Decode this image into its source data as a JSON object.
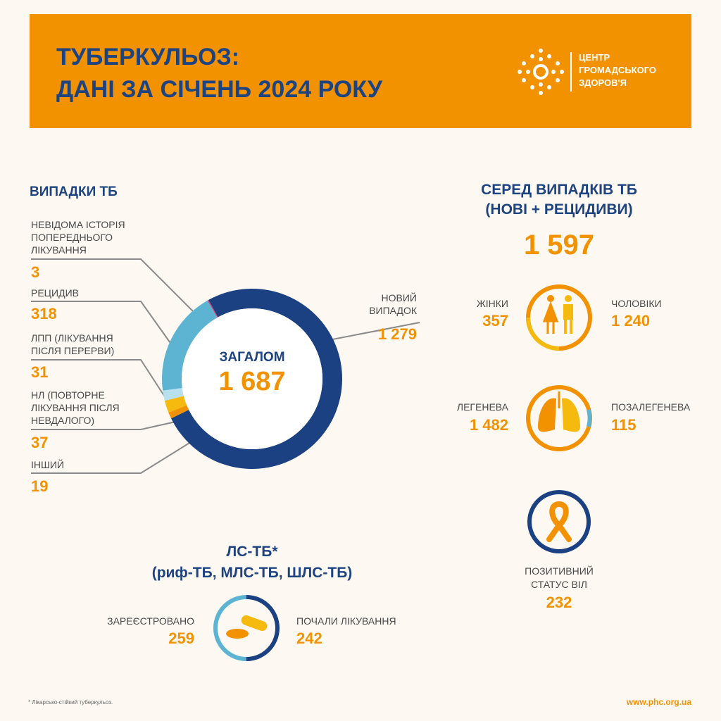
{
  "header": {
    "title_lines": [
      "ТУБЕРКУЛЬОЗ:",
      "ДАНІ ЗА СІЧЕНЬ 2024 РОКУ"
    ],
    "logo_lines": [
      "ЦЕНТР",
      "ГРОМАДСЬКОГО",
      "ЗДОРОВ'Я"
    ]
  },
  "chart_data": {
    "type": "pie",
    "title": "ВИПАДКИ ТБ",
    "center_label": "ЗАГАЛОМ",
    "center_total": "1 687",
    "categories": [
      "НОВИЙ ВИПАДОК",
      "ІНШИЙ",
      "НЛ (ПОВТОРНЕ ЛІКУВАННЯ ПІСЛЯ НЕВДАЛОГО)",
      "ЛПП (ЛІКУВАННЯ ПІСЛЯ ПЕРЕРВИ)",
      "РЕЦИДИВ",
      "НЕВІДОМА ІСТОРІЯ ПОПЕРЕДНЬОГО ЛІКУВАННЯ"
    ],
    "values": [
      1279,
      19,
      37,
      31,
      318,
      3
    ],
    "value_labels": [
      "1 279",
      "19",
      "37",
      "31",
      "318",
      "3"
    ],
    "colors": [
      "#1b4182",
      "#f39200",
      "#f6b90d",
      "#b9e0ef",
      "#5cb4d2",
      "#d6437a"
    ]
  },
  "new_relapse": {
    "title_lines": [
      "СЕРЕД ВИПАДКІВ ТБ",
      "(НОВІ + РЕЦИДИВИ)"
    ],
    "total": "1 597",
    "women_label": "ЖІНКИ",
    "women": "357",
    "men_label": "ЧОЛОВІКИ",
    "men": "1 240",
    "pulmonary_label": "ЛЕГЕНЕВА",
    "pulmonary": "1 482",
    "extrapulmonary_label": "ПОЗАЛЕГЕНЕВА",
    "extrapulmonary": "115",
    "hiv_label_lines": [
      "ПОЗИТИВНИЙ",
      "СТАТУС ВІЛ"
    ],
    "hiv": "232"
  },
  "dr_tb": {
    "title": "ЛС-ТБ*",
    "subtitle": "(риф-ТБ, МЛС-ТБ, ШЛС-ТБ)",
    "registered_label": "ЗАРЕЄСТРОВАНО",
    "registered": "259",
    "started_label": "ПОЧАЛИ ЛІКУВАННЯ",
    "started": "242"
  },
  "footer": {
    "note": "* Лікарсько-стійкий туберкульоз.",
    "url": "www.phc.org.ua"
  }
}
